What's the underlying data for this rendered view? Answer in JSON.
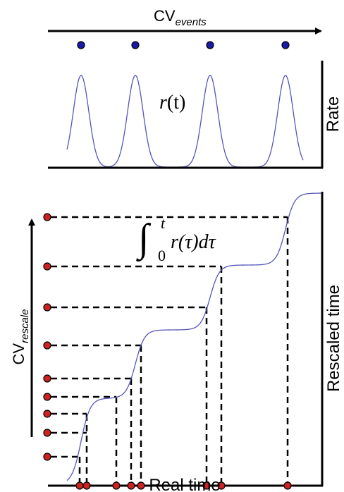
{
  "top": {
    "cv_label": {
      "base": "CV",
      "sub": "events"
    },
    "rate_axis_label": "Rate",
    "curve_label": {
      "func": "r",
      "arg": "(t)"
    },
    "curve_color": "#5555bb",
    "dot_color": "#1a1aa8"
  },
  "bottom": {
    "cv_label": {
      "base": "CV",
      "sub": "rescale"
    },
    "y_axis_label": "Rescaled time",
    "x_axis_label": "Real time",
    "integral": {
      "lower": "0",
      "upper": "t",
      "integrand": "r(τ)dτ"
    },
    "dot_color": "#cc2222",
    "curve_color": "#5555bb"
  }
}
